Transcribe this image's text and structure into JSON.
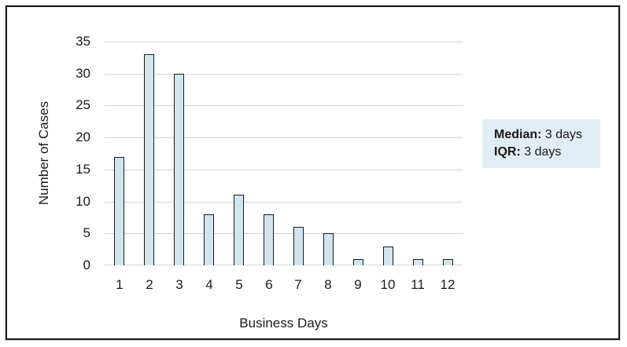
{
  "chart_data": {
    "type": "bar",
    "title": "",
    "categories": [
      "1",
      "2",
      "3",
      "4",
      "5",
      "6",
      "7",
      "8",
      "9",
      "10",
      "11",
      "12"
    ],
    "values": [
      17,
      33,
      30,
      8,
      11,
      8,
      6,
      5,
      1,
      3,
      1,
      1
    ],
    "xlabel": "Business Days",
    "ylabel": "Number of Cases",
    "ylim": [
      0,
      35
    ],
    "yticks": [
      0,
      5,
      10,
      15,
      20,
      25,
      30,
      35
    ],
    "grid": "horizontal-only",
    "legend": "none",
    "bar_fill": "#d2e5ee",
    "bar_border": "#1a1a1a",
    "gridline_color": "#d4d4d4",
    "text_color": "#1a1a1a",
    "frame_border_color": "#1a1a1a"
  },
  "annotation": {
    "background": "#e0edf4",
    "lines": [
      {
        "label": "Median:",
        "value": "3 days"
      },
      {
        "label": "IQR:",
        "value": "3 days"
      }
    ]
  }
}
